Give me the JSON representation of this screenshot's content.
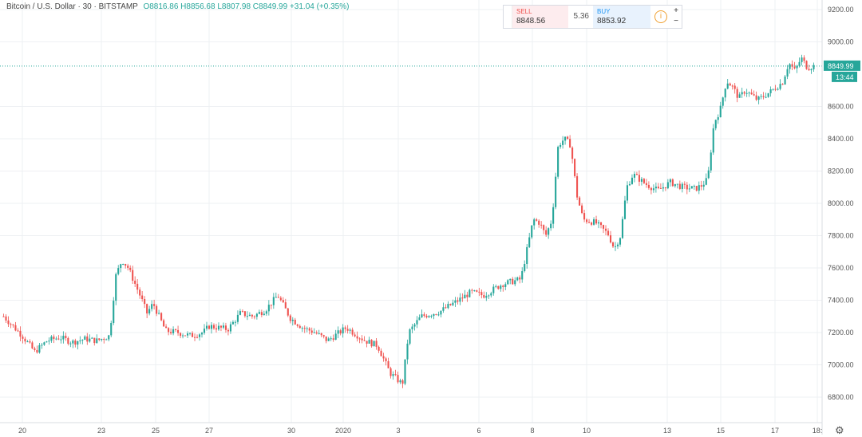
{
  "header": {
    "symbol": "Bitcoin / U.S. Dollar · 30 · BITSTAMP",
    "ohlc": "O8816.86 H8856.68 L8807.98 C8849.99 +31.04 (+0.35%)"
  },
  "trade_panel": {
    "sell_label": "SELL",
    "sell_price": "8848.56",
    "spread": "5.36",
    "buy_label": "BUY",
    "buy_price": "8853.92",
    "info_icon": "i",
    "zoom_in": "+",
    "zoom_out": "−"
  },
  "price_axis": {
    "ticks": [
      "9200.00",
      "9000.00",
      "8600.00",
      "8400.00",
      "8200.00",
      "8000.00",
      "7800.00",
      "7600.00",
      "7400.00",
      "7200.00",
      "7000.00",
      "6800.00"
    ],
    "last_price_label": "8849.99",
    "countdown_label": "13:44"
  },
  "time_axis": {
    "ticks": [
      "20",
      "23",
      "25",
      "27",
      "30",
      "2020",
      "3",
      "6",
      "8",
      "10",
      "13",
      "15",
      "17",
      "18:"
    ]
  },
  "colors": {
    "up": "#26a69a",
    "down": "#ef5350",
    "grid": "#eef0f3",
    "axis_text": "#555555",
    "price_line": "#26a69a"
  },
  "icons": {
    "settings": "gear-icon"
  },
  "chart_data": {
    "type": "candlestick",
    "title": "Bitcoin / U.S. Dollar · 30 · BITSTAMP",
    "ylim": [
      6700,
      9300
    ],
    "grid": true,
    "last_price": 8849.99,
    "x_ticks": [
      "20",
      "23",
      "25",
      "27",
      "30",
      "2020",
      "3",
      "6",
      "8",
      "10",
      "13",
      "15",
      "17",
      "18:"
    ],
    "y_ticks": [
      9200,
      9000,
      8600,
      8400,
      8200,
      8000,
      7800,
      7600,
      7400,
      7200,
      7000,
      6800
    ],
    "price_path_approx": [
      [
        0,
        7300
      ],
      [
        3,
        7180
      ],
      [
        5,
        7080
      ],
      [
        7,
        7150
      ],
      [
        9,
        7170
      ],
      [
        11,
        7140
      ],
      [
        13,
        7160
      ],
      [
        15,
        7150
      ],
      [
        17,
        7180
      ],
      [
        18,
        7550
      ],
      [
        19,
        7650
      ],
      [
        20,
        7600
      ],
      [
        22,
        7420
      ],
      [
        23,
        7320
      ],
      [
        24,
        7380
      ],
      [
        26,
        7210
      ],
      [
        28,
        7200
      ],
      [
        30,
        7180
      ],
      [
        32,
        7200
      ],
      [
        33,
        7240
      ],
      [
        36,
        7220
      ],
      [
        38,
        7320
      ],
      [
        40,
        7300
      ],
      [
        42,
        7340
      ],
      [
        44,
        7430
      ],
      [
        46,
        7290
      ],
      [
        48,
        7230
      ],
      [
        50,
        7200
      ],
      [
        52,
        7150
      ],
      [
        55,
        7230
      ],
      [
        58,
        7150
      ],
      [
        60,
        7120
      ],
      [
        62,
        6950
      ],
      [
        64,
        6880
      ],
      [
        65,
        7200
      ],
      [
        67,
        7300
      ],
      [
        70,
        7330
      ],
      [
        73,
        7400
      ],
      [
        75,
        7450
      ],
      [
        77,
        7430
      ],
      [
        80,
        7500
      ],
      [
        82,
        7520
      ],
      [
        83,
        7530
      ],
      [
        85,
        7900
      ],
      [
        86,
        7880
      ],
      [
        87,
        7800
      ],
      [
        88,
        7900
      ],
      [
        89,
        8360
      ],
      [
        90,
        8400
      ],
      [
        91,
        8360
      ],
      [
        92,
        8050
      ],
      [
        93,
        7900
      ],
      [
        95,
        7880
      ],
      [
        97,
        7810
      ],
      [
        98,
        7720
      ],
      [
        99,
        7800
      ],
      [
        100,
        8100
      ],
      [
        101,
        8180
      ],
      [
        103,
        8120
      ],
      [
        105,
        8080
      ],
      [
        107,
        8130
      ],
      [
        109,
        8100
      ],
      [
        111,
        8090
      ],
      [
        112,
        8110
      ],
      [
        113,
        8150
      ],
      [
        114,
        8500
      ],
      [
        115,
        8580
      ],
      [
        116,
        8760
      ],
      [
        117,
        8720
      ],
      [
        118,
        8650
      ],
      [
        119,
        8700
      ],
      [
        121,
        8640
      ],
      [
        123,
        8690
      ],
      [
        125,
        8750
      ],
      [
        126,
        8870
      ],
      [
        127,
        8820
      ],
      [
        128,
        8900
      ],
      [
        129,
        8840
      ],
      [
        130,
        8849.99
      ]
    ]
  }
}
